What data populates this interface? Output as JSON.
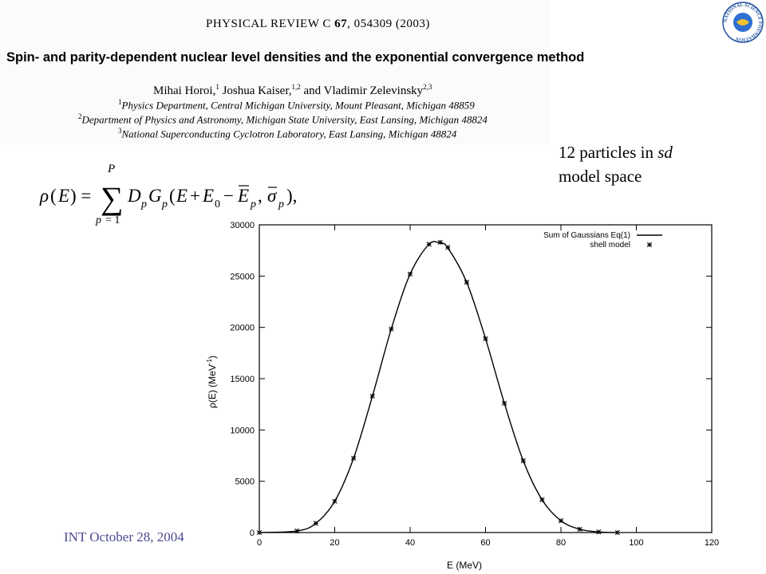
{
  "header": {
    "journal": "PHYSICAL REVIEW C",
    "volume": "67",
    "article_info": ", 054309  (2003)",
    "title": "Spin- and parity-dependent nuclear level densities and the exponential convergence method",
    "authors": [
      {
        "name": "Mihai Horoi,",
        "sup": "1"
      },
      {
        "name": " Joshua Kaiser,",
        "sup": "1,2"
      },
      {
        "name": " and Vladimir Zelevinsky",
        "sup": "2,3"
      }
    ],
    "affiliations": [
      {
        "sup": "1",
        "text": "Physics Department, Central Michigan University, Mount Pleasant, Michigan 48859"
      },
      {
        "sup": "2",
        "text": "Department of Physics and Astronomy, Michigan State University, East Lansing, Michigan 48824"
      },
      {
        "sup": "3",
        "text": "National Superconducting Cyclotron Laboratory, East Lansing, Michigan 48824"
      }
    ]
  },
  "logo": {
    "text": "NATIONAL SCIENCE FOUNDATION",
    "color": "#1f4f9e"
  },
  "note": {
    "line1_pre": "12 particles in ",
    "line1_it": "sd",
    "line2": "model space"
  },
  "footer": {
    "text": "INT  October 28, 2004",
    "color": "#4b4b91"
  },
  "chart_data": {
    "type": "line",
    "xlabel": "E (MeV)",
    "ylabel": "ρ(E) (MeV",
    "ylabel_sup": "-1",
    "ylabel_close": ")",
    "xlim": [
      0,
      120
    ],
    "ylim": [
      0,
      30000
    ],
    "xticks": [
      0,
      20,
      40,
      60,
      80,
      100,
      120
    ],
    "yticks": [
      0,
      5000,
      10000,
      15000,
      20000,
      25000,
      30000
    ],
    "legend_position": "top-right",
    "series": [
      {
        "name": "Sum of Gaussians Eq(1)",
        "style": "line",
        "x": [
          0,
          10,
          15,
          20,
          25,
          30,
          35,
          40,
          45,
          48,
          50,
          55,
          60,
          65,
          70,
          75,
          80,
          85,
          90,
          95
        ],
        "y": [
          0,
          150,
          900,
          3050,
          7250,
          13300,
          19850,
          25200,
          28100,
          28200,
          27750,
          24400,
          18900,
          12600,
          7000,
          3200,
          1150,
          320,
          60,
          0
        ]
      },
      {
        "name": "shell model",
        "style": "points",
        "x": [
          0,
          10,
          15,
          20,
          25,
          30,
          35,
          40,
          45,
          48,
          50,
          55,
          60,
          65,
          70,
          75,
          80,
          85,
          90,
          95
        ],
        "y": [
          0,
          150,
          900,
          3050,
          7250,
          13300,
          19850,
          25200,
          28100,
          28300,
          27800,
          24400,
          18900,
          12600,
          7000,
          3200,
          1150,
          320,
          60,
          0
        ]
      }
    ]
  }
}
